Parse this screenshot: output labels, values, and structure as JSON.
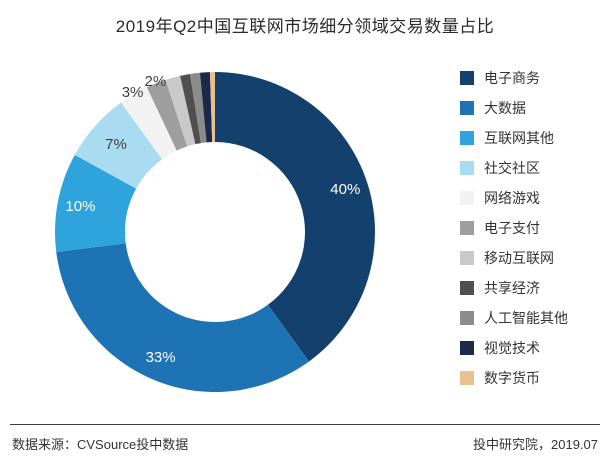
{
  "title": "2019年Q2中国互联网市场细分领域交易数量占比",
  "footer": {
    "source": "数据来源：CVSource投中数据",
    "right": "投中研究院，2019.07"
  },
  "chart_data": {
    "type": "pie",
    "subtype": "donut",
    "title": "2019年Q2中国互联网市场细分领域交易数量占比",
    "legend_position": "right",
    "unit": "%",
    "slices": [
      {
        "name": "电子商务",
        "value": 40,
        "label": "40%",
        "color": "#14406e",
        "label_color": "#ffffff"
      },
      {
        "name": "大数据",
        "value": 33,
        "label": "33%",
        "color": "#1e73b4",
        "label_color": "#ffffff"
      },
      {
        "name": "互联网其他",
        "value": 10,
        "label": "10%",
        "color": "#2fa3dc",
        "label_color": "#ffffff"
      },
      {
        "name": "社交社区",
        "value": 7,
        "label": "7%",
        "color": "#a9dcf0",
        "label_color": "#404040"
      },
      {
        "name": "网络游戏",
        "value": 3,
        "label": "3%",
        "color": "#f2f2f2",
        "label_color": "#404040"
      },
      {
        "name": "电子支付",
        "value": 2,
        "label": "2%",
        "color": "#9e9e9e",
        "label_color": "#404040"
      },
      {
        "name": "移动互联网",
        "value": 1.5,
        "label": "",
        "color": "#c9c9c9",
        "label_color": "#404040"
      },
      {
        "name": "共享经济",
        "value": 1,
        "label": "",
        "color": "#4f4f4f",
        "label_color": "#404040"
      },
      {
        "name": "人工智能其他",
        "value": 1,
        "label": "",
        "color": "#8c8c8c",
        "label_color": "#404040"
      },
      {
        "name": "视觉技术",
        "value": 1,
        "label": "",
        "color": "#1b2a4a",
        "label_color": "#404040"
      },
      {
        "name": "数字货币",
        "value": 0.5,
        "label": "",
        "color": "#e8c18c",
        "label_color": "#404040"
      }
    ]
  }
}
